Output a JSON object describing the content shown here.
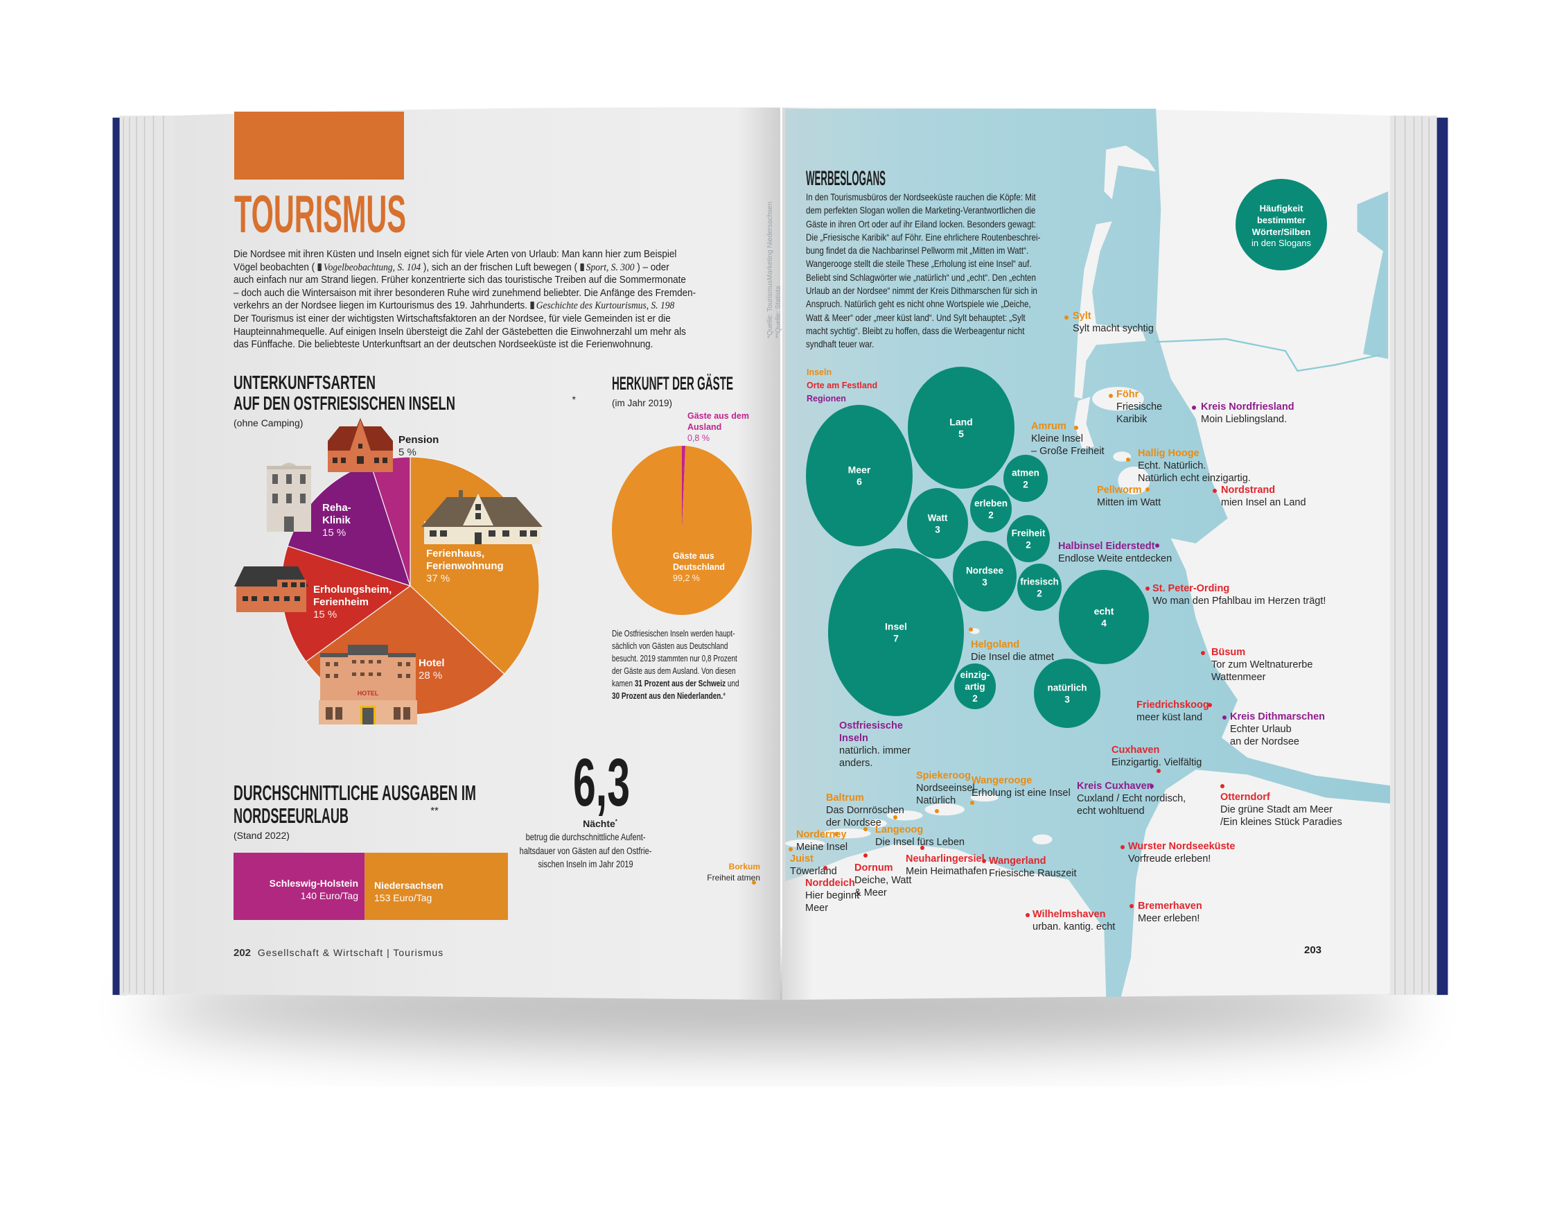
{
  "colors": {
    "cover": "#1f2b72",
    "title_orange": "#d8702e",
    "teal": "#0a8b77",
    "sea": "#a6d3dd",
    "land": "#f1f1f1",
    "island_label": "#e98c12",
    "town_label": "#e1262c",
    "region_label": "#8f1d8d"
  },
  "left_page": {
    "title": "TOURISMUS",
    "intro_lines": [
      [
        "Die Nordsee mit ihren Küsten und Inseln eignet sich für viele Arten von Urlaub: Man kann hier zum Beispiel"
      ],
      [
        "Vögel beobachten ( ",
        {
          "i": "Vogelbeobachtung, S. 104"
        },
        " ), sich an der frischen Luft bewegen ( ",
        {
          "i": "Sport, S. 300"
        },
        " ) – oder"
      ],
      [
        "auch einfach nur am Strand liegen. Früher konzentrierte sich das touristische Treiben auf die Sommermonate"
      ],
      [
        "– doch auch die Wintersaison mit ihrer besonderen Ruhe wird zunehmend beliebter. Die Anfänge des Fremden-"
      ],
      [
        "verkehrs an der Nordsee liegen im Kurtourismus des 19. Jahrhunderts. ",
        {
          "i": "Geschichte des Kurtourismus, S. 198"
        }
      ],
      [
        "Der Tourismus ist einer der wichtigsten Wirtschaftsfaktoren an der Nordsee, für viele Gemeinden ist er die"
      ],
      [
        "Haupteinnahmequelle. Auf einigen Inseln übersteigt die Zahl der Gästebetten die Einwohnerzahl um mehr als"
      ],
      [
        "das Fünffache. Die beliebteste Unterkunftsart an der deutschen Nordseeküste ist die Ferienwohnung."
      ]
    ],
    "unterkunft": {
      "title_line1": "UNTERKUNFTSARTEN",
      "title_line2": "AUF DEN OSTFRIESISCHEN INSELN",
      "mark": "*",
      "subtitle": "(ohne Camping)"
    },
    "herkunft": {
      "title": "HERKUNFT DER GÄSTE",
      "subtitle": "(im Jahr 2019)",
      "text_lines": [
        [
          "Die Ostfriesischen Inseln werden haupt-"
        ],
        [
          "sächlich von Gästen aus Deutschland"
        ],
        [
          "besucht. 2019 stammten nur 0,8 Prozent"
        ],
        [
          "der Gäste aus dem Ausland. Von diesen"
        ],
        [
          "kamen ",
          {
            "b": "31 Prozent aus der Schweiz"
          },
          " und"
        ],
        [
          {
            "b": "30 Prozent aus den Niederlanden."
          },
          "*"
        ]
      ]
    },
    "naechte": {
      "value": "6,3",
      "label": "Nächte",
      "mark": "*",
      "text_lines": [
        [
          "betrug die durchschnittliche Aufent-"
        ],
        [
          "haltsdauer von Gästen auf den Ostfrie-"
        ],
        [
          "sischen Inseln im Jahr 2019"
        ]
      ]
    },
    "ausgaben": {
      "title_line1": "DURCHSCHNITTLICHE AUSGABEN IM",
      "title_line2": "NORDSEEURLAUB",
      "mark": "**",
      "subtitle": "(Stand 2022)"
    },
    "sources": [
      "*Quelle: TourismusMarketing Niedersachsen",
      "**Quelle: Statista"
    ],
    "footer": {
      "page_number": "202",
      "section": "Gesellschaft & Wirtschaft",
      "separator": "|",
      "topic": "Tourismus"
    }
  },
  "right_page": {
    "title": "WERBESLOGANS",
    "text_lines": [
      [
        "In den Tourismusbüros der Nordseeküste rauchen die Köpfe: Mit"
      ],
      [
        "dem perfekten Slogan wollen die Marketing-Verantwortlichen die"
      ],
      [
        "Gäste in ihren Ort oder auf ihr Eiland locken. Besonders gewagt:"
      ],
      [
        "Die „Friesische Karibik“ auf Föhr. Eine ehrlichere Routenbeschrei-"
      ],
      [
        "bung findet da die Nachbarinsel Pellworm mit „Mitten im Watt“."
      ],
      [
        "Wangerooge stellt die steile These „Erholung ist eine Insel“ auf."
      ],
      [
        "Beliebt sind Schlagwörter wie „natürlich“ und „echt“. Den „echten"
      ],
      [
        "Urlaub an der Nordsee“ nimmt der Kreis Dithmarschen für sich in"
      ],
      [
        "Anspruch. Natürlich geht es nicht ohne Wortspiele wie „Deiche,"
      ],
      [
        "Watt & Meer“ oder „meer küst land“. Und Sylt behauptet: „Sylt"
      ],
      [
        "macht sychtig“. Bleibt zu hoffen, dass die Werbeagentur nicht"
      ],
      [
        "syndhaft teuer war."
      ]
    ],
    "bubble_legend": [
      "Häufigkeit",
      "bestimmter",
      "Wörter/Silben",
      "in den Slogans"
    ],
    "legend": [
      {
        "label": "Inseln",
        "type": "island"
      },
      {
        "label": "Orte am Festland",
        "type": "town"
      },
      {
        "label": "Regionen",
        "type": "region"
      }
    ],
    "places": [
      {
        "name": "Sylt",
        "type": "island",
        "slogan": [
          "Sylt macht sychtig"
        ]
      },
      {
        "name": "Föhr",
        "type": "island",
        "slogan": [
          "Friesische",
          "Karibik"
        ]
      },
      {
        "name": "Kreis Nordfriesland",
        "type": "region",
        "slogan": [
          "Moin Lieblingsland."
        ]
      },
      {
        "name": "Amrum",
        "type": "island",
        "slogan": [
          "Kleine Insel",
          "– Große Freiheit"
        ]
      },
      {
        "name": "Hallig Hooge",
        "type": "island",
        "slogan": [
          "Echt. Natürlich.",
          "Natürlich echt einzigartig."
        ]
      },
      {
        "name": "Pellworm",
        "type": "island",
        "slogan": [
          "Mitten im Watt"
        ]
      },
      {
        "name": "Nordstrand",
        "type": "town",
        "slogan": [
          "mien Insel an Land"
        ]
      },
      {
        "name": "Halbinsel Eiderstedt",
        "type": "region",
        "slogan": [
          "Endlose Weite entdecken"
        ]
      },
      {
        "name": "St. Peter-Ording",
        "type": "town",
        "slogan": [
          "Wo man den Pfahlbau im Herzen trägt!"
        ]
      },
      {
        "name": "Helgoland",
        "type": "island",
        "slogan": [
          "Die Insel die atmet"
        ]
      },
      {
        "name": "Büsum",
        "type": "town",
        "slogan": [
          "Tor zum Weltnaturerbe",
          "Wattenmeer"
        ]
      },
      {
        "name": "Friedrichskoog",
        "type": "town",
        "slogan": [
          "meer küst land"
        ]
      },
      {
        "name": "Kreis Dithmarschen",
        "type": "region",
        "slogan": [
          "Echter Urlaub",
          "an der Nordsee"
        ]
      },
      {
        "name": "Ostfriesische Inseln",
        "type": "region",
        "slogan": [
          "natürlich. immer",
          "anders."
        ]
      },
      {
        "name": "Cuxhaven",
        "type": "town",
        "slogan": [
          "Einzigartig. Vielfältig"
        ]
      },
      {
        "name": "Spiekeroog",
        "type": "island",
        "slogan": [
          "Nordseeinsel",
          "Natürlich"
        ]
      },
      {
        "name": "Wangerooge",
        "type": "island",
        "slogan": [
          "Erholung ist eine Insel"
        ]
      },
      {
        "name": "Kreis Cuxhaven",
        "type": "region",
        "slogan": [
          "Cuxland / Echt nordisch,",
          "echt wohltuend"
        ]
      },
      {
        "name": "Otterndorf",
        "type": "town",
        "slogan": [
          "Die grüne Stadt am Meer",
          "/Ein kleines Stück Paradies"
        ]
      },
      {
        "name": "Baltrum",
        "type": "island",
        "slogan": [
          "Das Dornröschen",
          "der Nordsee"
        ]
      },
      {
        "name": "Langeoog",
        "type": "island",
        "slogan": [
          "Die Insel fürs Leben"
        ]
      },
      {
        "name": "Norderney",
        "type": "island",
        "slogan": [
          "Meine Insel"
        ]
      },
      {
        "name": "Wurster Nordseeküste",
        "type": "town",
        "slogan": [
          "Vorfreude erleben!"
        ]
      },
      {
        "name": "Juist",
        "type": "island",
        "slogan": [
          "Töwerland"
        ]
      },
      {
        "name": "Neuharlingersiel",
        "type": "town",
        "slogan": [
          "Mein Heimathafen"
        ]
      },
      {
        "name": "Wangerland",
        "type": "town",
        "slogan": [
          "Friesische Rauszeit"
        ]
      },
      {
        "name": "Dornum",
        "type": "town",
        "slogan": [
          "Deiche, Watt",
          "& Meer"
        ]
      },
      {
        "name": "Norddeich",
        "type": "town",
        "slogan": [
          "Hier beginnt",
          "Meer"
        ]
      },
      {
        "name": "Bremerhaven",
        "type": "town",
        "slogan": [
          "Meer erleben!"
        ]
      },
      {
        "name": "Wilhelmshaven",
        "type": "town",
        "slogan": [
          "urban. kantig. echt"
        ]
      },
      {
        "name": "Borkum",
        "type": "island",
        "slogan": [
          "Freiheit atmen"
        ]
      }
    ],
    "page_number": "203"
  },
  "chart_data": [
    {
      "type": "pie",
      "title": "UNTERKUNFTSARTEN AUF DEN OSTFRIESISCHEN INSELN*",
      "subtitle": "(ohne Camping)",
      "categories": [
        "Ferienhaus, Ferienwohnung",
        "Hotel",
        "Erholungsheim, Ferienheim",
        "Reha-Klinik",
        "Pension"
      ],
      "values": [
        37,
        28,
        15,
        15,
        5
      ],
      "value_labels": [
        "37 %",
        "28 %",
        "15 %",
        "15 %",
        "5 %"
      ],
      "colors": [
        "#e28a24",
        "#d6602a",
        "#cc2d26",
        "#821a7b",
        "#b0287f"
      ],
      "unit": "%"
    },
    {
      "type": "pie",
      "title": "HERKUNFT DER GÄSTE",
      "subtitle": "(im Jahr 2019)",
      "categories": [
        "Gäste aus dem Ausland",
        "Gäste aus Deutschland"
      ],
      "values": [
        0.8,
        99.2
      ],
      "value_labels": [
        "0,8 %",
        "99,2 %"
      ],
      "colors": [
        "#c1238f",
        "#e88f27"
      ],
      "unit": "%"
    },
    {
      "type": "bar",
      "orientation": "horizontal-stacked",
      "title": "DURCHSCHNITTLICHE AUSGABEN IM NORDSEEURLAUB**",
      "subtitle": "(Stand 2022)",
      "categories": [
        "Schleswig-Holstein",
        "Niedersachsen"
      ],
      "values": [
        140,
        153
      ],
      "value_labels": [
        "140 Euro/Tag",
        "153 Euro/Tag"
      ],
      "colors": [
        "#b0287f",
        "#e08a24"
      ],
      "unit": "Euro/Tag"
    },
    {
      "type": "bubble",
      "title": "Häufigkeit bestimmter Wörter/Silben in den Slogans",
      "items": [
        {
          "label": "Insel",
          "value": 7
        },
        {
          "label": "Meer",
          "value": 6
        },
        {
          "label": "Land",
          "value": 5
        },
        {
          "label": "echt",
          "value": 4
        },
        {
          "label": "Watt",
          "value": 3
        },
        {
          "label": "Nordsee",
          "value": 3
        },
        {
          "label": "natürlich",
          "value": 3
        },
        {
          "label": "atmen",
          "value": 2
        },
        {
          "label": "erleben",
          "value": 2
        },
        {
          "label": "Freiheit",
          "value": 2
        },
        {
          "label": "friesisch",
          "value": 2
        },
        {
          "label": "einzig-artig",
          "value": 2
        }
      ],
      "color": "#0a8b77"
    }
  ]
}
